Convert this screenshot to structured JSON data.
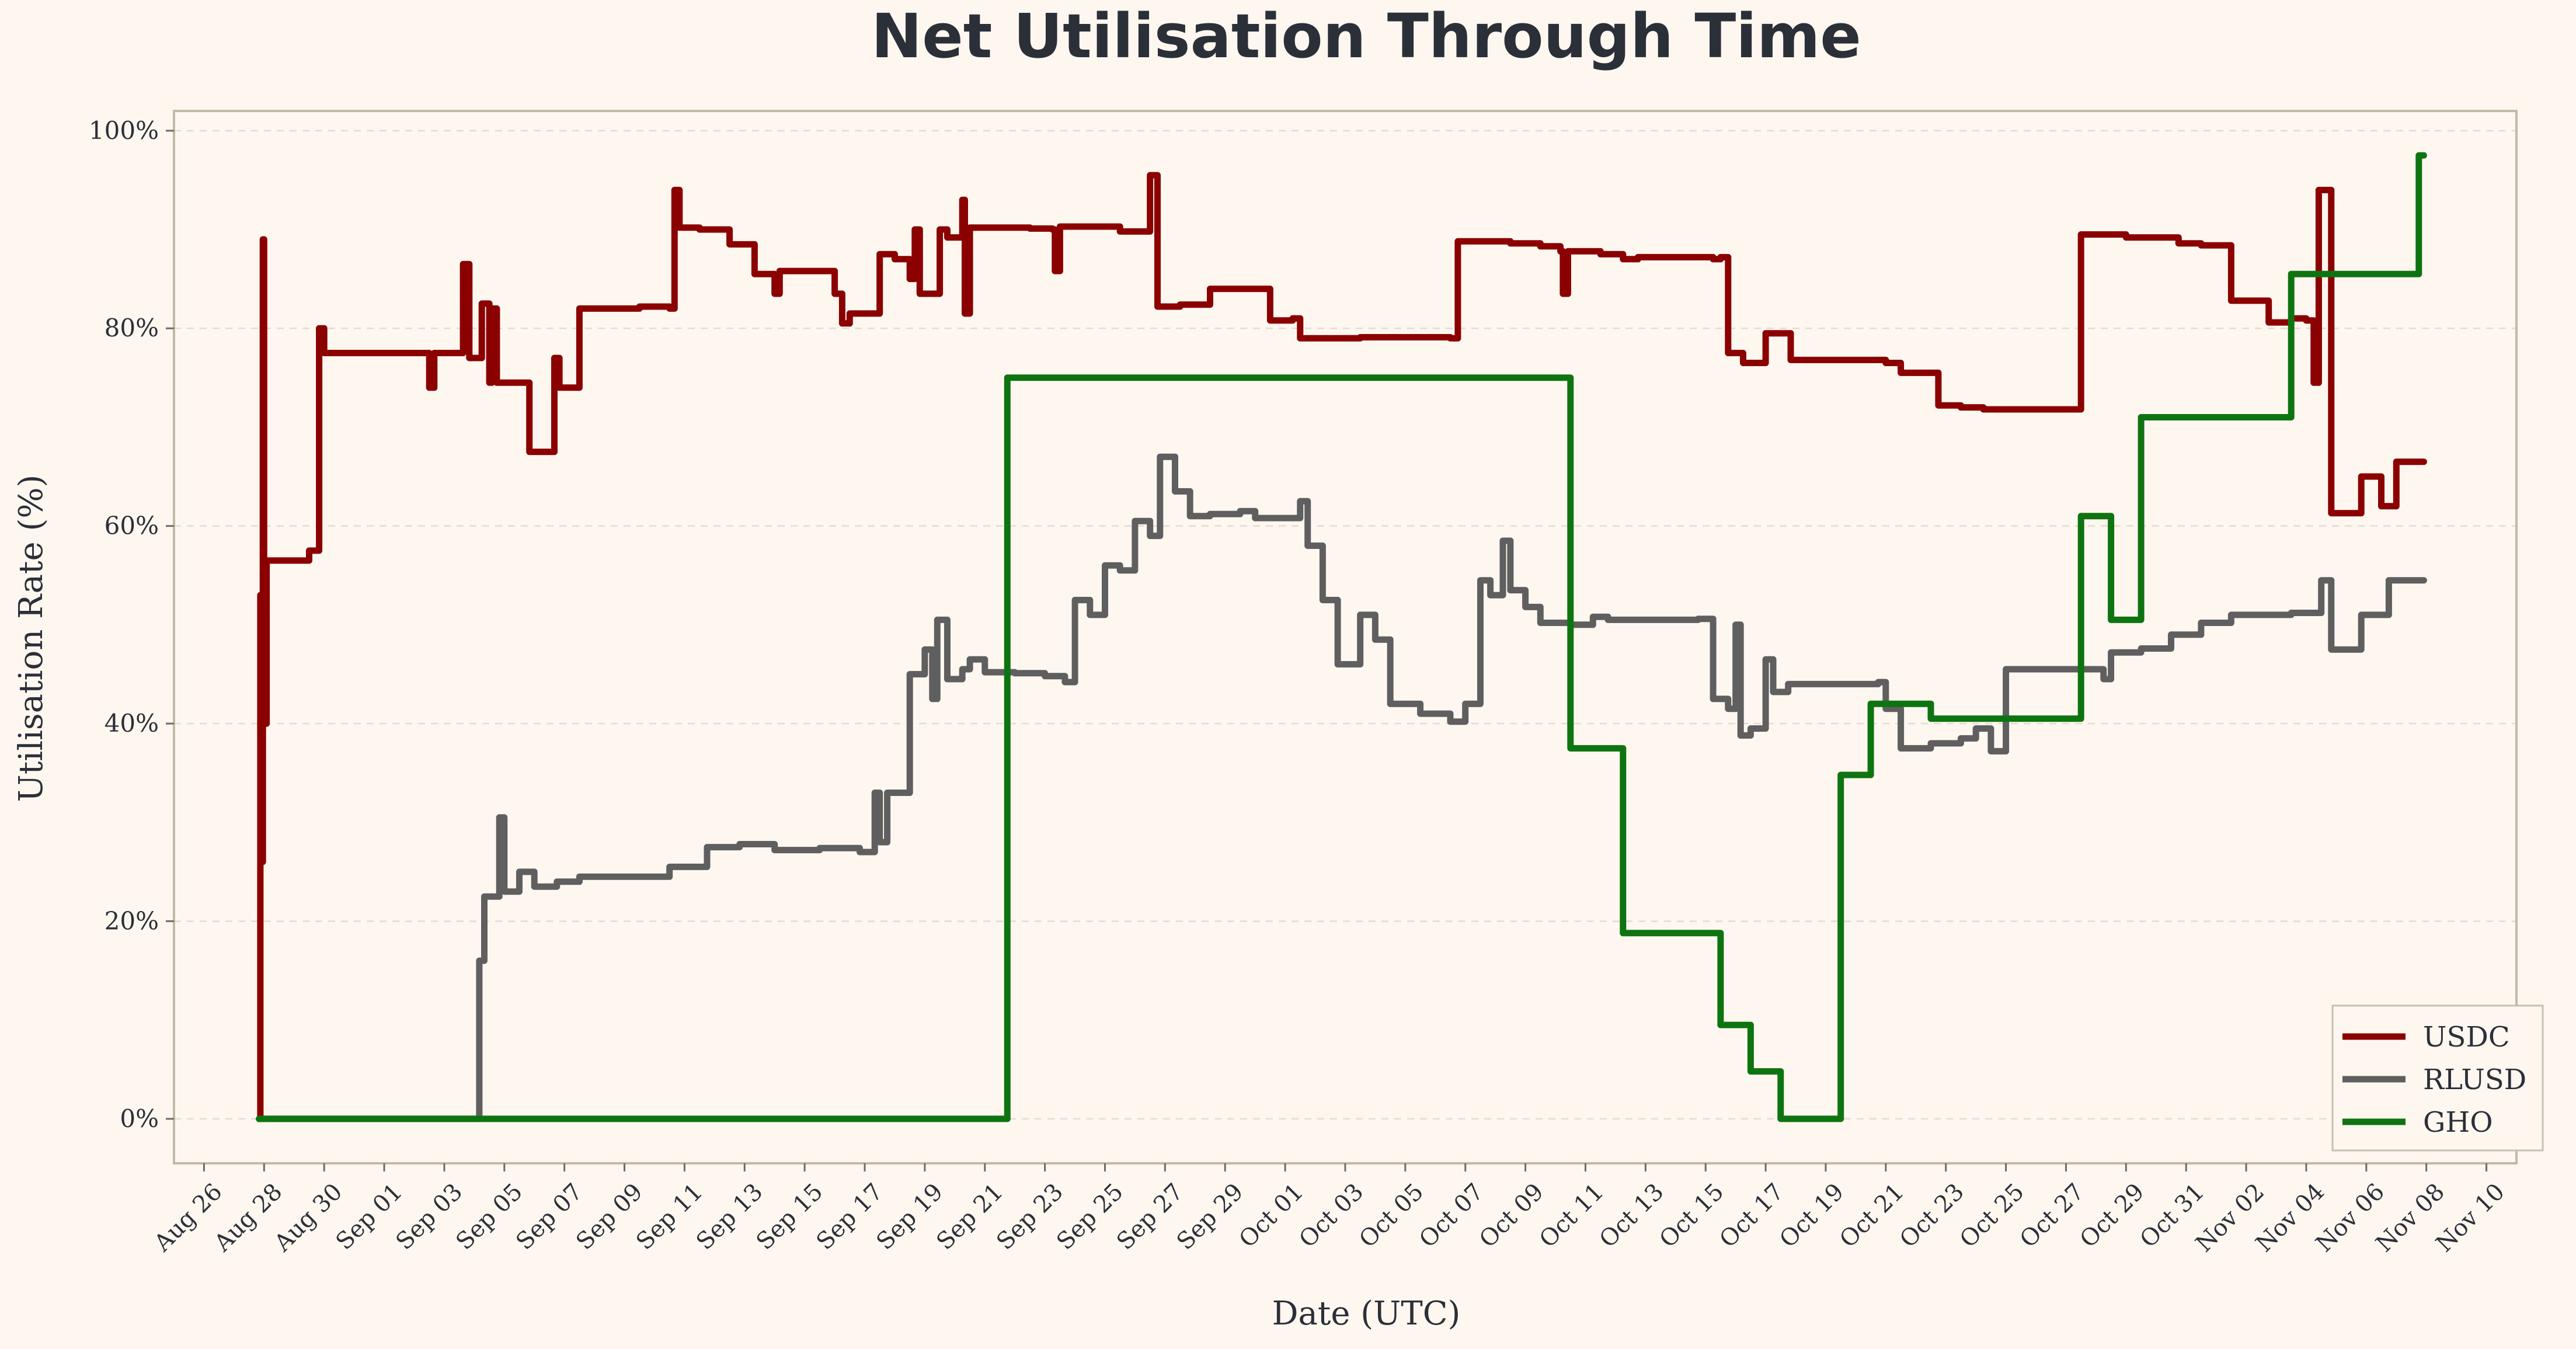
{
  "chart_data": {
    "type": "line",
    "title": "Net Utilisation Through Time",
    "xlabel": "Date (UTC)",
    "ylabel": "Utilisation Rate (%)",
    "xlim": [
      "2025-08-25",
      "2025-11-11"
    ],
    "ylim": [
      -4.5,
      102
    ],
    "grid": true,
    "legend_position": "bottom-right",
    "yticks": [
      {
        "value": 0,
        "label": "0%"
      },
      {
        "value": 20,
        "label": "20%"
      },
      {
        "value": 40,
        "label": "40%"
      },
      {
        "value": 60,
        "label": "60%"
      },
      {
        "value": 80,
        "label": "80%"
      },
      {
        "value": 100,
        "label": "100%"
      }
    ],
    "xticks": [
      {
        "date": "2025-08-26",
        "label": "Aug 26"
      },
      {
        "date": "2025-08-28",
        "label": "Aug 28"
      },
      {
        "date": "2025-08-30",
        "label": "Aug 30"
      },
      {
        "date": "2025-09-01",
        "label": "Sep 01"
      },
      {
        "date": "2025-09-03",
        "label": "Sep 03"
      },
      {
        "date": "2025-09-05",
        "label": "Sep 05"
      },
      {
        "date": "2025-09-07",
        "label": "Sep 07"
      },
      {
        "date": "2025-09-09",
        "label": "Sep 09"
      },
      {
        "date": "2025-09-11",
        "label": "Sep 11"
      },
      {
        "date": "2025-09-13",
        "label": "Sep 13"
      },
      {
        "date": "2025-09-15",
        "label": "Sep 15"
      },
      {
        "date": "2025-09-17",
        "label": "Sep 17"
      },
      {
        "date": "2025-09-19",
        "label": "Sep 19"
      },
      {
        "date": "2025-09-21",
        "label": "Sep 21"
      },
      {
        "date": "2025-09-23",
        "label": "Sep 23"
      },
      {
        "date": "2025-09-25",
        "label": "Sep 25"
      },
      {
        "date": "2025-09-27",
        "label": "Sep 27"
      },
      {
        "date": "2025-09-29",
        "label": "Sep 29"
      },
      {
        "date": "2025-10-01",
        "label": "Oct 01"
      },
      {
        "date": "2025-10-03",
        "label": "Oct 03"
      },
      {
        "date": "2025-10-05",
        "label": "Oct 05"
      },
      {
        "date": "2025-10-07",
        "label": "Oct 07"
      },
      {
        "date": "2025-10-09",
        "label": "Oct 09"
      },
      {
        "date": "2025-10-11",
        "label": "Oct 11"
      },
      {
        "date": "2025-10-13",
        "label": "Oct 13"
      },
      {
        "date": "2025-10-15",
        "label": "Oct 15"
      },
      {
        "date": "2025-10-17",
        "label": "Oct 17"
      },
      {
        "date": "2025-10-19",
        "label": "Oct 19"
      },
      {
        "date": "2025-10-21",
        "label": "Oct 21"
      },
      {
        "date": "2025-10-23",
        "label": "Oct 23"
      },
      {
        "date": "2025-10-25",
        "label": "Oct 25"
      },
      {
        "date": "2025-10-27",
        "label": "Oct 27"
      },
      {
        "date": "2025-10-29",
        "label": "Oct 29"
      },
      {
        "date": "2025-10-31",
        "label": "Oct 31"
      },
      {
        "date": "2025-11-02",
        "label": "Nov 02"
      },
      {
        "date": "2025-11-04",
        "label": "Nov 04"
      },
      {
        "date": "2025-11-06",
        "label": "Nov 06"
      },
      {
        "date": "2025-11-08",
        "label": "Nov 08"
      },
      {
        "date": "2025-11-10",
        "label": "Nov 10"
      }
    ],
    "series": [
      {
        "name": "USDC",
        "color": "#8b0000",
        "step": true,
        "points": [
          [
            "2025-08-27 20:00",
            0
          ],
          [
            "2025-08-27 21:00",
            53
          ],
          [
            "2025-08-27 22:00",
            26
          ],
          [
            "2025-08-27 23:00",
            89
          ],
          [
            "2025-08-28 00:00",
            40
          ],
          [
            "2025-08-28 02:00",
            56.5
          ],
          [
            "2025-08-29 12:00",
            57.5
          ],
          [
            "2025-08-29 20:00",
            80
          ],
          [
            "2025-08-30 00:00",
            77.5
          ],
          [
            "2025-09-02 12:00",
            74
          ],
          [
            "2025-09-02 16:00",
            77.5
          ],
          [
            "2025-09-03 15:00",
            86.5
          ],
          [
            "2025-09-03 20:00",
            77
          ],
          [
            "2025-09-04 06:00",
            82.5
          ],
          [
            "2025-09-04 12:00",
            74.5
          ],
          [
            "2025-09-04 14:00",
            82
          ],
          [
            "2025-09-04 18:00",
            74.5
          ],
          [
            "2025-09-05 20:00",
            67.5
          ],
          [
            "2025-09-06 16:00",
            77
          ],
          [
            "2025-09-06 20:00",
            74
          ],
          [
            "2025-09-07 12:00",
            82
          ],
          [
            "2025-09-09 12:00",
            82.2
          ],
          [
            "2025-09-10 12:00",
            82
          ],
          [
            "2025-09-10 16:00",
            94
          ],
          [
            "2025-09-10 20:00",
            90.2
          ],
          [
            "2025-09-11 12:00",
            90
          ],
          [
            "2025-09-12 12:00",
            88.5
          ],
          [
            "2025-09-13 08:00",
            85.5
          ],
          [
            "2025-09-14 00:00",
            83.5
          ],
          [
            "2025-09-14 04:00",
            85.8
          ],
          [
            "2025-09-16 00:00",
            83.5
          ],
          [
            "2025-09-16 06:00",
            80.5
          ],
          [
            "2025-09-16 12:00",
            81.5
          ],
          [
            "2025-09-17 12:00",
            87.5
          ],
          [
            "2025-09-18 00:00",
            87
          ],
          [
            "2025-09-18 12:00",
            85
          ],
          [
            "2025-09-18 16:00",
            90
          ],
          [
            "2025-09-18 20:00",
            83.5
          ],
          [
            "2025-09-19 12:00",
            90
          ],
          [
            "2025-09-19 18:00",
            89.2
          ],
          [
            "2025-09-20 06:00",
            93
          ],
          [
            "2025-09-20 08:00",
            81.5
          ],
          [
            "2025-09-20 12:00",
            90.2
          ],
          [
            "2025-09-22 12:00",
            90.1
          ],
          [
            "2025-09-23 06:00",
            90
          ],
          [
            "2025-09-23 08:00",
            85.8
          ],
          [
            "2025-09-23 12:00",
            90.3
          ],
          [
            "2025-09-25 12:00",
            89.8
          ],
          [
            "2025-09-26 12:00",
            95.5
          ],
          [
            "2025-09-26 18:00",
            82.2
          ],
          [
            "2025-09-27 12:00",
            82.4
          ],
          [
            "2025-09-28 12:00",
            84
          ],
          [
            "2025-09-30 12:00",
            80.8
          ],
          [
            "2025-10-01 06:00",
            81
          ],
          [
            "2025-10-01 12:00",
            79
          ],
          [
            "2025-10-03 12:00",
            79.1
          ],
          [
            "2025-10-06 12:00",
            79
          ],
          [
            "2025-10-06 18:00",
            88.8
          ],
          [
            "2025-10-08 12:00",
            88.6
          ],
          [
            "2025-10-09 12:00",
            88.3
          ],
          [
            "2025-10-10 04:00",
            87.8
          ],
          [
            "2025-10-10 06:00",
            83.5
          ],
          [
            "2025-10-10 10:00",
            87.8
          ],
          [
            "2025-10-11 12:00",
            87.5
          ],
          [
            "2025-10-12 06:00",
            87
          ],
          [
            "2025-10-12 18:00",
            87.2
          ],
          [
            "2025-10-15 06:00",
            87
          ],
          [
            "2025-10-15 12:00",
            87.2
          ],
          [
            "2025-10-15 18:00",
            77.5
          ],
          [
            "2025-10-16 06:00",
            76.5
          ],
          [
            "2025-10-17 00:00",
            79.5
          ],
          [
            "2025-10-17 20:00",
            76.8
          ],
          [
            "2025-10-21 00:00",
            76.5
          ],
          [
            "2025-10-21 12:00",
            75.5
          ],
          [
            "2025-10-22 18:00",
            72.2
          ],
          [
            "2025-10-23 12:00",
            72
          ],
          [
            "2025-10-24 06:00",
            71.8
          ],
          [
            "2025-10-27 12:00",
            89.5
          ],
          [
            "2025-10-29 00:00",
            89.2
          ],
          [
            "2025-10-30 18:00",
            88.6
          ],
          [
            "2025-10-31 12:00",
            88.4
          ],
          [
            "2025-11-01 12:00",
            82.8
          ],
          [
            "2025-11-02 18:00",
            80.6
          ],
          [
            "2025-11-03 12:00",
            81
          ],
          [
            "2025-11-04 00:00",
            80.8
          ],
          [
            "2025-11-04 06:00",
            74.5
          ],
          [
            "2025-11-04 10:00",
            94
          ],
          [
            "2025-11-04 20:00",
            61.3
          ],
          [
            "2025-11-05 20:00",
            65
          ],
          [
            "2025-11-06 12:00",
            62
          ],
          [
            "2025-11-07 00:00",
            66.5
          ],
          [
            "2025-11-07 22:00",
            66.5
          ]
        ]
      },
      {
        "name": "RLUSD",
        "color": "#5f5f5f",
        "step": true,
        "points": [
          [
            "2025-08-27 20:00",
            0
          ],
          [
            "2025-09-04 00:00",
            0
          ],
          [
            "2025-09-04 04:00",
            16
          ],
          [
            "2025-09-04 08:00",
            22.5
          ],
          [
            "2025-09-04 20:00",
            30.5
          ],
          [
            "2025-09-05 00:00",
            23
          ],
          [
            "2025-09-05 12:00",
            25
          ],
          [
            "2025-09-06 00:00",
            23.5
          ],
          [
            "2025-09-06 18:00",
            24
          ],
          [
            "2025-09-07 12:00",
            24.5
          ],
          [
            "2025-09-08 12:00",
            24.5
          ],
          [
            "2025-09-10 12:00",
            25.5
          ],
          [
            "2025-09-11 18:00",
            27.5
          ],
          [
            "2025-09-12 20:00",
            27.8
          ],
          [
            "2025-09-14 00:00",
            27.2
          ],
          [
            "2025-09-15 12:00",
            27.4
          ],
          [
            "2025-09-16 20:00",
            27
          ],
          [
            "2025-09-17 08:00",
            33
          ],
          [
            "2025-09-17 12:00",
            28
          ],
          [
            "2025-09-17 18:00",
            33
          ],
          [
            "2025-09-18 12:00",
            45
          ],
          [
            "2025-09-19 00:00",
            47.5
          ],
          [
            "2025-09-19 06:00",
            42.5
          ],
          [
            "2025-09-19 10:00",
            50.5
          ],
          [
            "2025-09-19 18:00",
            44.5
          ],
          [
            "2025-09-20 06:00",
            45.5
          ],
          [
            "2025-09-20 12:00",
            46.5
          ],
          [
            "2025-09-21 00:00",
            45.2
          ],
          [
            "2025-09-22 00:00",
            45.1
          ],
          [
            "2025-09-23 00:00",
            44.8
          ],
          [
            "2025-09-23 16:00",
            44.2
          ],
          [
            "2025-09-24 00:00",
            52.5
          ],
          [
            "2025-09-24 12:00",
            51
          ],
          [
            "2025-09-25 00:00",
            56
          ],
          [
            "2025-09-25 12:00",
            55.5
          ],
          [
            "2025-09-26 00:00",
            60.5
          ],
          [
            "2025-09-26 12:00",
            59
          ],
          [
            "2025-09-26 20:00",
            67
          ],
          [
            "2025-09-27 08:00",
            63.5
          ],
          [
            "2025-09-27 20:00",
            61
          ],
          [
            "2025-09-28 12:00",
            61.2
          ],
          [
            "2025-09-29 12:00",
            61.5
          ],
          [
            "2025-09-30 00:00",
            60.8
          ],
          [
            "2025-10-01 12:00",
            62.5
          ],
          [
            "2025-10-01 18:00",
            58
          ],
          [
            "2025-10-02 06:00",
            52.5
          ],
          [
            "2025-10-02 18:00",
            46
          ],
          [
            "2025-10-03 12:00",
            51
          ],
          [
            "2025-10-04 00:00",
            48.5
          ],
          [
            "2025-10-04 12:00",
            42
          ],
          [
            "2025-10-05 12:00",
            41
          ],
          [
            "2025-10-06 12:00",
            40.2
          ],
          [
            "2025-10-07 00:00",
            42
          ],
          [
            "2025-10-07 12:00",
            54.5
          ],
          [
            "2025-10-07 20:00",
            53
          ],
          [
            "2025-10-08 06:00",
            58.5
          ],
          [
            "2025-10-08 12:00",
            53.5
          ],
          [
            "2025-10-09 00:00",
            51.8
          ],
          [
            "2025-10-09 12:00",
            50.2
          ],
          [
            "2025-10-10 12:00",
            50
          ],
          [
            "2025-10-11 06:00",
            50.8
          ],
          [
            "2025-10-11 18:00",
            50.5
          ],
          [
            "2025-10-14 18:00",
            50.6
          ],
          [
            "2025-10-15 06:00",
            42.5
          ],
          [
            "2025-10-15 18:00",
            41.5
          ],
          [
            "2025-10-16 00:00",
            50
          ],
          [
            "2025-10-16 04:00",
            38.8
          ],
          [
            "2025-10-16 12:00",
            39.5
          ],
          [
            "2025-10-17 00:00",
            46.5
          ],
          [
            "2025-10-17 06:00",
            43.2
          ],
          [
            "2025-10-17 18:00",
            44
          ],
          [
            "2025-10-19 12:00",
            44
          ],
          [
            "2025-10-20 18:00",
            44.2
          ],
          [
            "2025-10-21 00:00",
            41.5
          ],
          [
            "2025-10-21 12:00",
            37.5
          ],
          [
            "2025-10-22 12:00",
            38
          ],
          [
            "2025-10-23 12:00",
            38.5
          ],
          [
            "2025-10-24 00:00",
            39.5
          ],
          [
            "2025-10-24 12:00",
            37.2
          ],
          [
            "2025-10-25 00:00",
            45.5
          ],
          [
            "2025-10-27 12:00",
            45.5
          ],
          [
            "2025-10-28 06:00",
            44.5
          ],
          [
            "2025-10-28 12:00",
            47.2
          ],
          [
            "2025-10-29 12:00",
            47.6
          ],
          [
            "2025-10-30 12:00",
            49
          ],
          [
            "2025-10-31 12:00",
            50.2
          ],
          [
            "2025-11-01 12:00",
            51
          ],
          [
            "2025-11-03 12:00",
            51.2
          ],
          [
            "2025-11-04 12:00",
            54.5
          ],
          [
            "2025-11-04 20:00",
            47.5
          ],
          [
            "2025-11-05 20:00",
            51
          ],
          [
            "2025-11-06 18:00",
            54.5
          ],
          [
            "2025-11-07 22:00",
            54.5
          ]
        ]
      },
      {
        "name": "GHO",
        "color": "#0e7410",
        "step": true,
        "points": [
          [
            "2025-08-27 20:00",
            0
          ],
          [
            "2025-09-21 18:00",
            75
          ],
          [
            "2025-10-10 12:00",
            37.5
          ],
          [
            "2025-10-12 06:00",
            18.8
          ],
          [
            "2025-10-15 12:00",
            9.5
          ],
          [
            "2025-10-16 12:00",
            4.8
          ],
          [
            "2025-10-17 12:00",
            0
          ],
          [
            "2025-10-19 12:00",
            34.8
          ],
          [
            "2025-10-20 12:00",
            42
          ],
          [
            "2025-10-22 12:00",
            40.5
          ],
          [
            "2025-10-27 12:00",
            61
          ],
          [
            "2025-10-28 12:00",
            50.5
          ],
          [
            "2025-10-29 12:00",
            71
          ],
          [
            "2025-11-03 12:00",
            85.5
          ],
          [
            "2025-11-07 18:00",
            97.5
          ],
          [
            "2025-11-07 22:00",
            97.5
          ]
        ]
      }
    ]
  }
}
